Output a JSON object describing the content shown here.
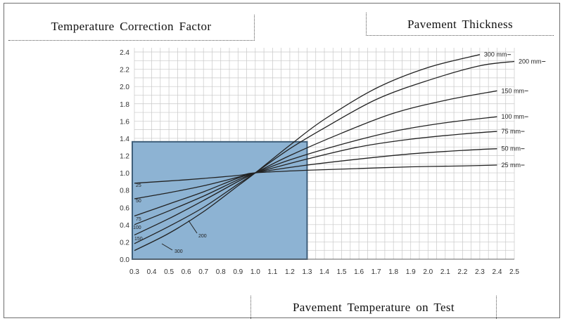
{
  "labels": {
    "left_box": "Temperature Correction Factor",
    "right_box": "Pavement Thickness",
    "bottom_box": "Pavement Temperature on Test"
  },
  "colors": {
    "highlight_fill": "#8db3d3",
    "highlight_border": "#3f5f7a",
    "grid": "#c8c8c8",
    "curve": "#222222"
  },
  "chart_data": {
    "type": "line",
    "xlim": [
      0.3,
      2.5
    ],
    "ylim": [
      0.0,
      2.4
    ],
    "x_ticks": [
      "0.3",
      "0.4",
      "0.5",
      "0.6",
      "0.7",
      "0.8",
      "0.9",
      "1.0",
      "1.1",
      "1.2",
      "1.3",
      "1.4",
      "1.5",
      "1.6",
      "1.7",
      "1.8",
      "1.9",
      "2.0",
      "2.1",
      "2.2",
      "2.3",
      "2.4",
      "2.5"
    ],
    "y_ticks": [
      "0.0",
      "0.2",
      "0.4",
      "0.6",
      "0.8",
      "1.0",
      "1.2",
      "1.4",
      "1.6",
      "1.8",
      "2.0",
      "2.2",
      "2.4"
    ],
    "grid": true,
    "highlight_region": {
      "x": [
        0.3,
        1.3
      ],
      "y": [
        0.0,
        1.36
      ]
    },
    "series": [
      {
        "name": "300 mm",
        "left_label": "300",
        "x": [
          0.3,
          0.5,
          0.7,
          0.9,
          1.0,
          1.2,
          1.4,
          1.7,
          2.0,
          2.3
        ],
        "y": [
          0.1,
          0.3,
          0.55,
          0.85,
          1.0,
          1.32,
          1.62,
          1.98,
          2.22,
          2.37
        ]
      },
      {
        "name": "200 mm",
        "left_label": "200",
        "x": [
          0.3,
          0.5,
          0.7,
          0.9,
          1.0,
          1.2,
          1.4,
          1.7,
          2.0,
          2.3,
          2.5
        ],
        "y": [
          0.18,
          0.38,
          0.6,
          0.87,
          1.0,
          1.28,
          1.52,
          1.85,
          2.07,
          2.24,
          2.29
        ]
      },
      {
        "name": "150 mm",
        "left_label": "150",
        "x": [
          0.3,
          0.5,
          0.7,
          0.9,
          1.0,
          1.2,
          1.5,
          1.8,
          2.1,
          2.4
        ],
        "y": [
          0.28,
          0.47,
          0.68,
          0.9,
          1.0,
          1.2,
          1.46,
          1.69,
          1.84,
          1.95
        ]
      },
      {
        "name": "100 mm",
        "left_label": "100",
        "x": [
          0.3,
          0.5,
          0.7,
          0.9,
          1.0,
          1.2,
          1.5,
          1.8,
          2.1,
          2.4
        ],
        "y": [
          0.4,
          0.56,
          0.73,
          0.92,
          1.0,
          1.15,
          1.33,
          1.48,
          1.58,
          1.65
        ]
      },
      {
        "name": "75 mm",
        "left_label": "75",
        "x": [
          0.3,
          0.5,
          0.7,
          0.9,
          1.0,
          1.3,
          1.6,
          1.9,
          2.2,
          2.4
        ],
        "y": [
          0.5,
          0.64,
          0.78,
          0.94,
          1.0,
          1.16,
          1.3,
          1.39,
          1.45,
          1.48
        ]
      },
      {
        "name": "50 mm",
        "left_label": "50",
        "x": [
          0.3,
          0.5,
          0.7,
          0.9,
          1.0,
          1.3,
          1.6,
          1.9,
          2.2,
          2.4
        ],
        "y": [
          0.7,
          0.77,
          0.85,
          0.95,
          1.0,
          1.09,
          1.16,
          1.22,
          1.26,
          1.28
        ]
      },
      {
        "name": "25 mm",
        "left_label": "25",
        "x": [
          0.3,
          0.6,
          0.9,
          1.0,
          1.3,
          1.6,
          1.9,
          2.2,
          2.4
        ],
        "y": [
          0.88,
          0.92,
          0.97,
          1.0,
          1.03,
          1.05,
          1.07,
          1.08,
          1.09
        ]
      }
    ]
  }
}
